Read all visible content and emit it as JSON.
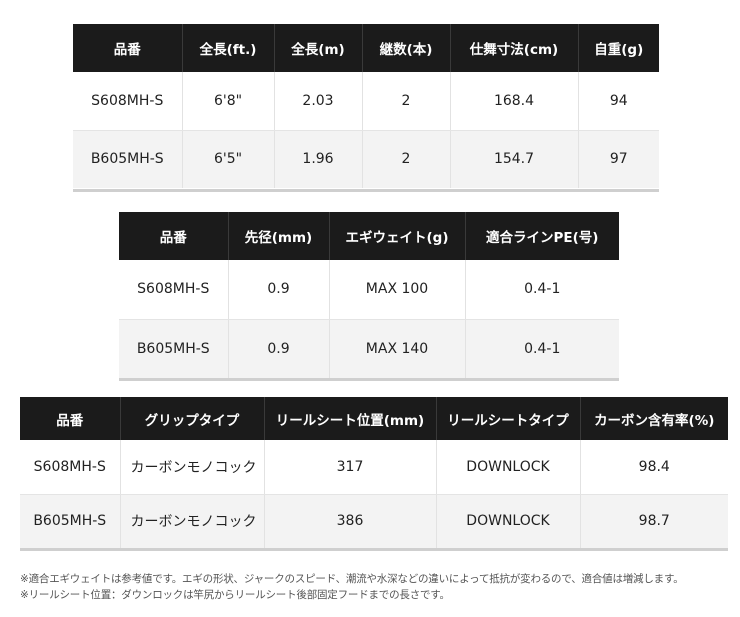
{
  "table1": {
    "headers": [
      "品番",
      "全長(ft.)",
      "全長(m)",
      "継数(本)",
      "仕舞寸法(cm)",
      "自重(g)"
    ],
    "rows": [
      [
        "S608MH-S",
        "6'8\"",
        "2.03",
        "2",
        "168.4",
        "94"
      ],
      [
        "B605MH-S",
        "6'5\"",
        "1.96",
        "2",
        "154.7",
        "97"
      ]
    ]
  },
  "table2": {
    "headers": [
      "品番",
      "先径(mm)",
      "エギウェイト(g)",
      "適合ラインPE(号)"
    ],
    "rows": [
      [
        "S608MH-S",
        "0.9",
        "MAX 100",
        "0.4-1"
      ],
      [
        "B605MH-S",
        "0.9",
        "MAX 140",
        "0.4-1"
      ]
    ]
  },
  "table3": {
    "headers": [
      "品番",
      "グリップタイプ",
      "リールシート位置(mm)",
      "リールシートタイプ",
      "カーボン含有率(%)"
    ],
    "rows": [
      [
        "S608MH-S",
        "カーボンモノコック",
        "317",
        "DOWNLOCK",
        "98.4"
      ],
      [
        "B605MH-S",
        "カーボンモノコック",
        "386",
        "DOWNLOCK",
        "98.7"
      ]
    ]
  },
  "notes": [
    "※適合エギウェイトは参考値です。エギの形状、ジャークのスピード、潮流や水深などの違いによって抵抗が変わるので、適合値は増減します。",
    "※リールシート位置：ダウンロックは竿尻からリールシート後部固定フードまでの長さです。"
  ]
}
